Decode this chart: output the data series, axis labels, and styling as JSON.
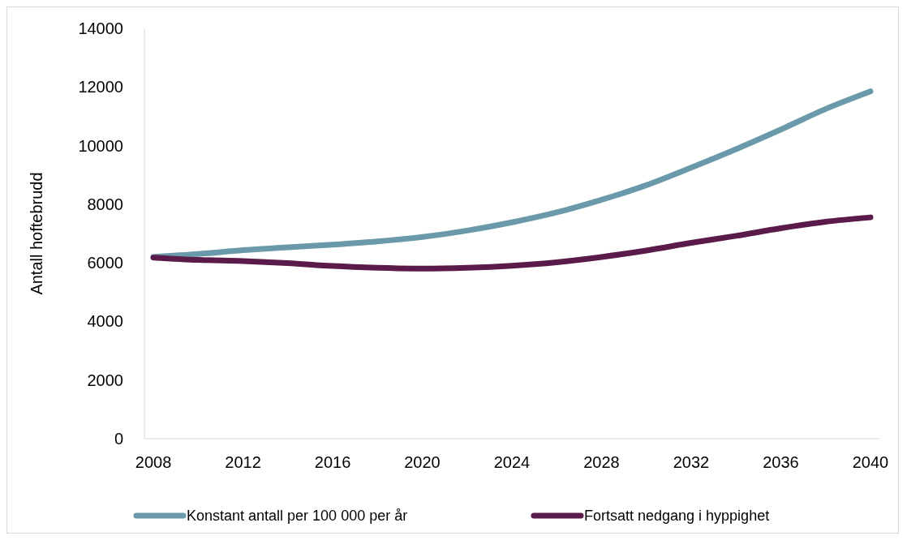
{
  "chart_data": {
    "type": "line",
    "ylabel": "Antall hoftebrudd",
    "x": [
      2008,
      2010,
      2012,
      2014,
      2016,
      2018,
      2020,
      2022,
      2024,
      2026,
      2028,
      2030,
      2032,
      2034,
      2036,
      2038,
      2040
    ],
    "series": [
      {
        "name": "Konstant antall per 100 000 per år",
        "color": "#6a9aa9",
        "values": [
          6200,
          6300,
          6430,
          6530,
          6620,
          6730,
          6880,
          7100,
          7380,
          7720,
          8150,
          8650,
          9250,
          9880,
          10550,
          11250,
          11850
        ]
      },
      {
        "name": "Fortsatt nedgang i hyppighet",
        "color": "#5a1a4a",
        "values": [
          6180,
          6100,
          6060,
          5990,
          5890,
          5830,
          5800,
          5830,
          5900,
          6020,
          6200,
          6420,
          6680,
          6920,
          7180,
          7400,
          7550
        ]
      }
    ],
    "xlim": [
      2007.6,
      2040.4
    ],
    "xticks": [
      2008,
      2012,
      2016,
      2020,
      2024,
      2028,
      2032,
      2036,
      2040
    ],
    "ylim": [
      0,
      14000
    ],
    "yticks": [
      0,
      2000,
      4000,
      6000,
      8000,
      10000,
      12000,
      14000
    ],
    "grid": false,
    "legend": "bottom",
    "marker": "none",
    "line_style": "solid"
  }
}
